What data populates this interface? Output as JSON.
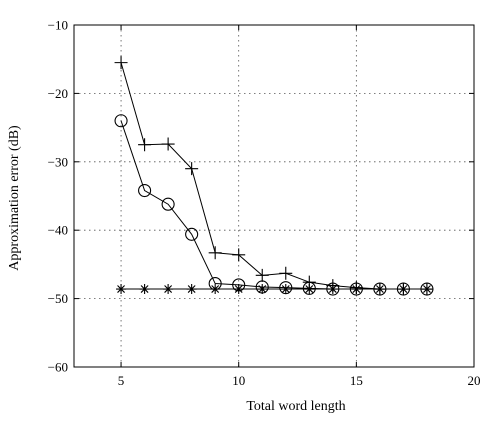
{
  "chart_data": {
    "type": "line",
    "title": "",
    "xlabel": "Total word length",
    "ylabel": "Approximation error (dB)",
    "xlim": [
      3,
      20
    ],
    "ylim": [
      -60,
      -10
    ],
    "xticks": [
      5,
      10,
      15,
      20
    ],
    "yticks": [
      -60,
      -50,
      -40,
      -30,
      -20,
      -10
    ],
    "grid": true,
    "legend": "none",
    "series": [
      {
        "marker": "plus",
        "x": [
          5,
          6,
          7,
          8,
          9,
          10,
          11,
          12,
          13,
          14,
          15,
          16,
          17,
          18
        ],
        "y": [
          -15.5,
          -27.5,
          -27.4,
          -31.0,
          -43.3,
          -43.6,
          -46.6,
          -46.3,
          -47.6,
          -48.1,
          -48.4,
          -48.6,
          -48.6,
          -48.6
        ]
      },
      {
        "marker": "circle",
        "x": [
          5,
          6,
          7,
          8,
          9,
          10,
          11,
          12,
          13,
          14,
          15,
          16,
          17,
          18
        ],
        "y": [
          -24.0,
          -34.2,
          -36.2,
          -40.6,
          -47.8,
          -48.0,
          -48.3,
          -48.4,
          -48.5,
          -48.6,
          -48.6,
          -48.6,
          -48.6,
          -48.6
        ]
      },
      {
        "marker": "asterisk",
        "x": [
          5,
          6,
          7,
          8,
          9,
          10,
          11,
          12,
          13,
          14,
          15,
          16,
          17,
          18
        ],
        "y": [
          -48.6,
          -48.6,
          -48.6,
          -48.6,
          -48.6,
          -48.6,
          -48.6,
          -48.6,
          -48.6,
          -48.6,
          -48.6,
          -48.6,
          -48.6,
          -48.6
        ]
      }
    ]
  }
}
